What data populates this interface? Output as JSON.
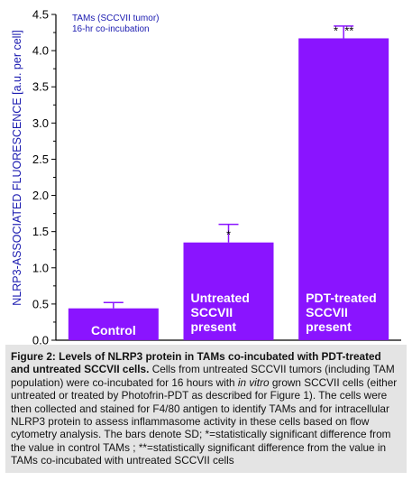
{
  "chart_data": {
    "type": "bar",
    "categories": [
      "Control",
      "Untreated SCCVII present",
      "PDT-treated SCCVII present"
    ],
    "category_lines": [
      [
        "Control"
      ],
      [
        "Untreated",
        "SCCVII",
        "present"
      ],
      [
        "PDT-treated",
        "SCCVII",
        "present"
      ]
    ],
    "values": [
      0.44,
      1.35,
      4.17
    ],
    "errors": [
      0.08,
      0.25,
      0.17
    ],
    "significance": [
      "",
      "*",
      "*  **"
    ],
    "ylabel": "NLRP3-ASSOCIATED FLUORESCENCE [a.u. per cell]",
    "ylim": [
      0,
      4.5
    ],
    "yticks": [
      "0.0",
      "0.5",
      "1.0",
      "1.5",
      "2.0",
      "2.5",
      "3.0",
      "3.5",
      "4.0",
      "4.5"
    ],
    "annotation_lines": [
      "TAMs (SCCVII tumor)",
      "16-hr co-incubation"
    ],
    "colors": {
      "bar": "#8a14ff",
      "error": "#8a14ff",
      "text_on_bar": "#ffffff",
      "axis": "#000000",
      "annotation": "#1a1ab0"
    }
  },
  "caption": {
    "figure_label": "Figure 2:",
    "bold_title": "Levels of NLRP3 protein in TAMs co-incubated with PDT-treated and untreated SCCVII cells.",
    "text_1": "Cells from untreated SCCVII tumors (including TAM population) were co-incubated for 16 hours with",
    "italic": "in vitro",
    "text_2": "grown SCCVII cells (either untreated or treated by Photofrin-PDT as described for Figure 1). The cells were then collected and stained for F4/80 antigen to identify TAMs and for intracellular NLRP3 protein to assess inflammasome activity in these cells based on flow cytometry analysis. The bars denote SD; *=statistically significant difference from the value in control TAMs ; **=statistically significant difference from the value in TAMs co-incubated with untreated SCCVII cells"
  }
}
